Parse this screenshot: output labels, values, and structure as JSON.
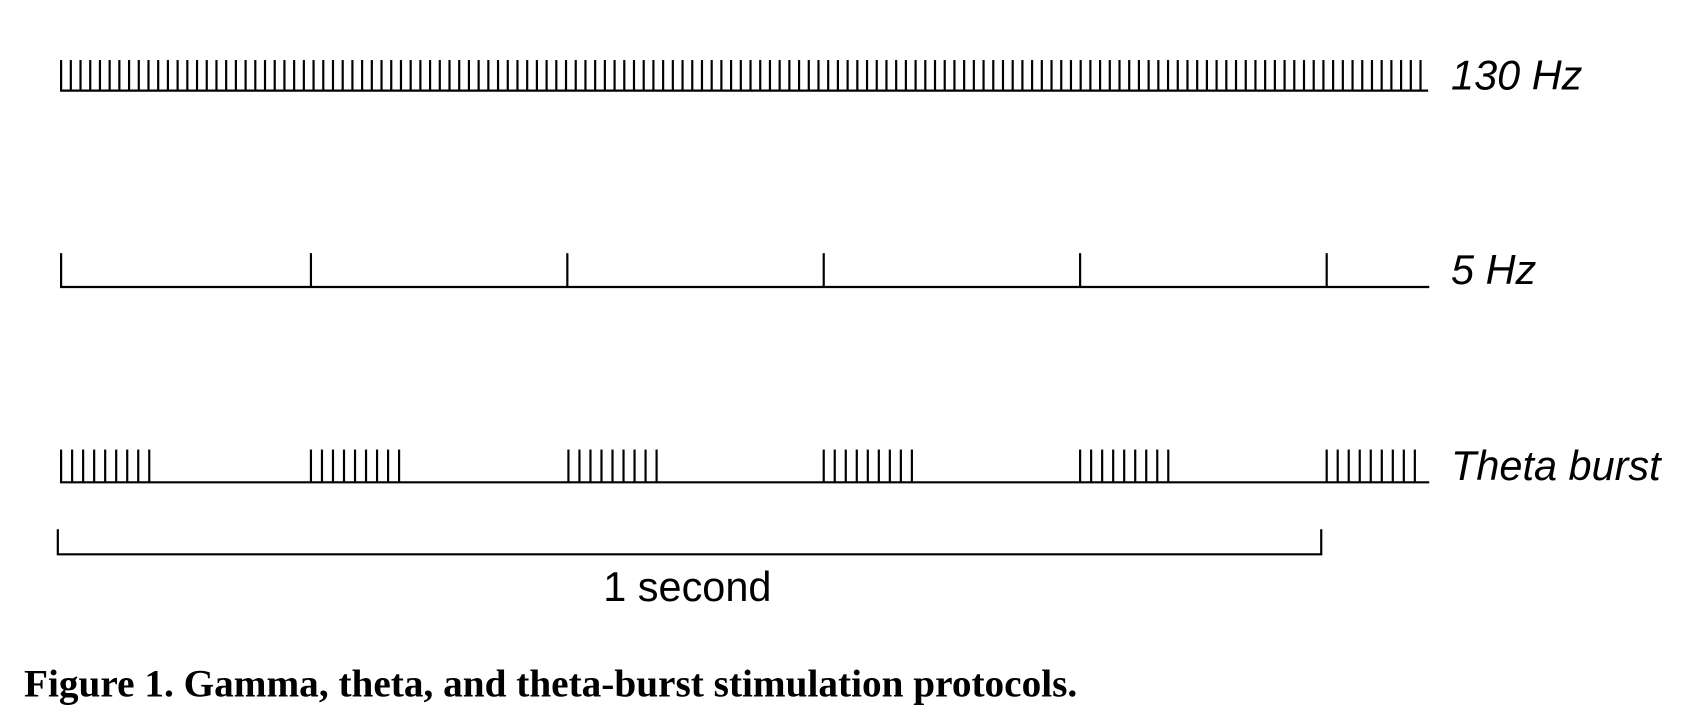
{
  "rows": [
    {
      "label": "130 Hz"
    },
    {
      "label": "5 Hz"
    },
    {
      "label": "Theta burst"
    }
  ],
  "scale_bar": {
    "label": "1 second"
  },
  "caption": "Figure 1. Gamma, theta, and theta-burst stimulation protocols."
}
